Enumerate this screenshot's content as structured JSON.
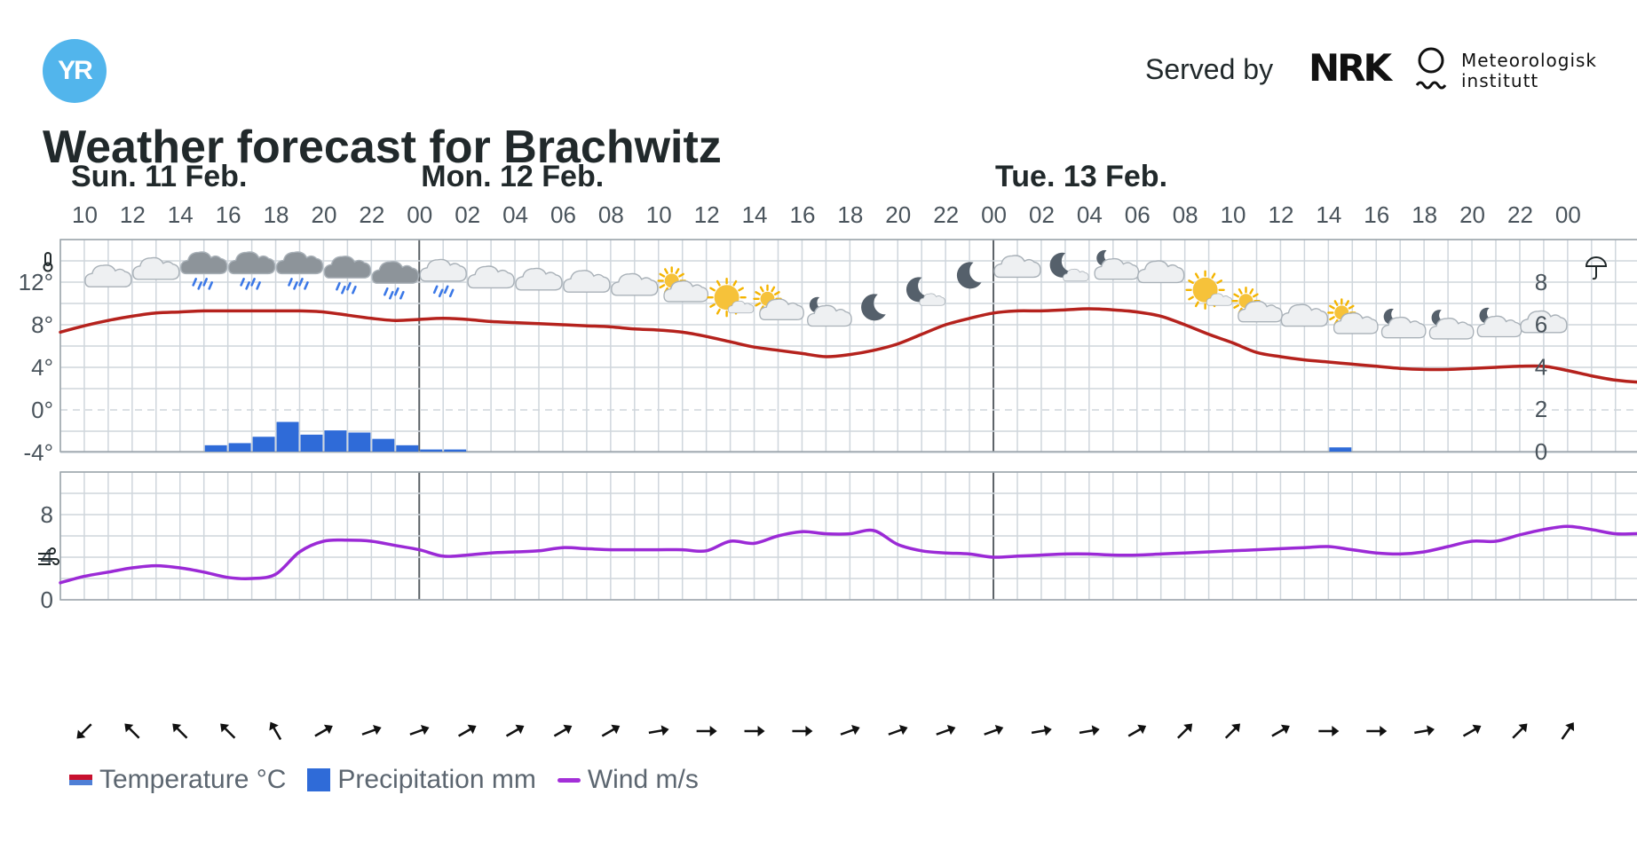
{
  "header": {
    "logo_text": "YR",
    "served_by": "Served by",
    "partner_logo_text": "NRK",
    "institute_line1": "Meteorologisk",
    "institute_line2": "institutt",
    "title": "Weather forecast for Brachwitz"
  },
  "legend": {
    "temperature": "Temperature °C",
    "precipitation": "Precipitation mm",
    "wind": "Wind m/s"
  },
  "colors": {
    "temperature": "#b5221d",
    "precipitation": "#2f6bd8",
    "wind": "#9b2ad6",
    "grid": "#cfd6dc"
  },
  "chart_data": {
    "type": "line",
    "days": [
      {
        "label": "Sun. 11 Feb.",
        "start_hour": 10
      },
      {
        "label": "Mon. 12 Feb.",
        "start_hour": 0
      },
      {
        "label": "Tue. 13 Feb.",
        "start_hour": 0
      }
    ],
    "hour_ticks": [
      "10",
      "12",
      "14",
      "16",
      "18",
      "20",
      "22",
      "00",
      "02",
      "04",
      "06",
      "08",
      "10",
      "12",
      "14",
      "16",
      "18",
      "20",
      "22",
      "00",
      "02",
      "04",
      "06",
      "08",
      "10",
      "12",
      "14",
      "16",
      "18",
      "20",
      "22",
      "00"
    ],
    "temperature": {
      "name": "Temperature °C",
      "axis_ticks": [
        "12°",
        "8°",
        "4°",
        "0°",
        "-4°"
      ],
      "ylim": [
        -4,
        16
      ],
      "hours": [
        9,
        10,
        11,
        12,
        13,
        14,
        15,
        16,
        17,
        18,
        19,
        20,
        21,
        22,
        23,
        24,
        25,
        26,
        27,
        28,
        29,
        30,
        31,
        32,
        33,
        34,
        35,
        36,
        37,
        38,
        39,
        40,
        41,
        42,
        43,
        44,
        45,
        46,
        47,
        48,
        49,
        50,
        51,
        52,
        53,
        54,
        55,
        56,
        57,
        58,
        59,
        60,
        61,
        62,
        63,
        64,
        65,
        66,
        67,
        68,
        69,
        70,
        71,
        72,
        73,
        74,
        75,
        76,
        77,
        78,
        79,
        80,
        81,
        82,
        83,
        84,
        85,
        86,
        87,
        88,
        89,
        90,
        91,
        92,
        93,
        94,
        95,
        96,
        97,
        98,
        99,
        100,
        101,
        102,
        103,
        104,
        105,
        106,
        107,
        108,
        109
      ],
      "values": [
        7.3,
        7.9,
        8.4,
        8.8,
        9.1,
        9.2,
        9.3,
        9.3,
        9.3,
        9.3,
        9.3,
        9.2,
        8.9,
        8.6,
        8.4,
        8.5,
        8.6,
        8.5,
        8.3,
        8.2,
        8.1,
        8.0,
        7.9,
        7.8,
        7.6,
        7.5,
        7.3,
        6.9,
        6.4,
        5.9,
        5.6,
        5.3,
        5.0,
        5.2,
        5.6,
        6.2,
        7.1,
        8.0,
        8.6,
        9.1,
        9.3,
        9.3,
        9.4,
        9.5,
        9.4,
        9.2,
        8.8,
        8.0,
        7.1,
        6.3,
        5.4,
        5.0,
        4.7,
        4.5,
        4.3,
        4.1,
        3.9,
        3.8,
        3.8,
        3.9,
        4.0,
        4.1,
        4.1,
        3.7,
        3.2,
        2.8,
        2.6,
        2.6,
        2.7,
        2.8,
        2.8,
        3.2,
        3.9,
        4.5,
        5.1,
        5.8,
        6.6,
        7.4,
        7.7,
        7.8,
        7.7,
        7.6,
        7.7,
        7.7,
        7.5,
        7.2,
        6.6,
        5.3,
        4.6,
        4.5,
        4.2,
        3.8,
        3.5,
        3.2,
        3.0,
        2.9,
        2.8,
        2.7,
        2.6,
        2.6,
        2.7
      ]
    },
    "precipitation": {
      "name": "Precipitation mm",
      "axis_ticks": [
        "8",
        "6",
        "4",
        "2",
        "0"
      ],
      "ylim": [
        0,
        10
      ],
      "bars": [
        {
          "hour": 15,
          "value": 0.3
        },
        {
          "hour": 16,
          "value": 0.4
        },
        {
          "hour": 17,
          "value": 0.7
        },
        {
          "hour": 18,
          "value": 1.4
        },
        {
          "hour": 19,
          "value": 0.8
        },
        {
          "hour": 20,
          "value": 1.0
        },
        {
          "hour": 21,
          "value": 0.9
        },
        {
          "hour": 22,
          "value": 0.6
        },
        {
          "hour": 23,
          "value": 0.3
        },
        {
          "hour": 24,
          "value": 0.1
        },
        {
          "hour": 25,
          "value": 0.1
        },
        {
          "hour": 62,
          "value": 0.2
        }
      ]
    },
    "wind": {
      "name": "Wind m/s",
      "axis_ticks": [
        "8",
        "4",
        "0"
      ],
      "ylim": [
        0,
        12
      ],
      "hours": [
        9,
        10,
        11,
        12,
        13,
        14,
        15,
        16,
        17,
        18,
        19,
        20,
        21,
        22,
        23,
        24,
        25,
        26,
        27,
        28,
        29,
        30,
        31,
        32,
        33,
        34,
        35,
        36,
        37,
        38,
        39,
        40,
        41,
        42,
        43,
        44,
        45,
        46,
        47,
        48,
        49,
        50,
        51,
        52,
        53,
        54,
        55,
        56,
        57,
        58,
        59,
        60,
        61,
        62,
        63,
        64,
        65,
        66,
        67,
        68,
        69,
        70,
        71,
        72,
        73,
        74,
        75,
        76,
        77,
        78,
        79,
        80,
        81,
        82,
        83,
        84,
        85,
        86,
        87,
        88,
        89,
        90,
        91,
        92,
        93,
        94,
        95,
        96,
        97,
        98,
        99,
        100,
        101,
        102,
        103,
        104,
        105,
        106,
        107,
        108,
        109
      ],
      "values": [
        1.6,
        2.2,
        2.6,
        3.0,
        3.2,
        3.0,
        2.6,
        2.1,
        2.0,
        2.4,
        4.5,
        5.5,
        5.6,
        5.5,
        5.1,
        4.7,
        4.1,
        4.2,
        4.4,
        4.5,
        4.6,
        4.9,
        4.8,
        4.7,
        4.7,
        4.7,
        4.7,
        4.6,
        5.5,
        5.3,
        6.0,
        6.4,
        6.2,
        6.2,
        6.5,
        5.2,
        4.6,
        4.4,
        4.3,
        4.0,
        4.1,
        4.2,
        4.3,
        4.3,
        4.2,
        4.2,
        4.3,
        4.4,
        4.5,
        4.6,
        4.7,
        4.8,
        4.9,
        5.0,
        4.7,
        4.4,
        4.3,
        4.5,
        5.0,
        5.5,
        5.5,
        6.1,
        6.6,
        6.9,
        6.6,
        6.2,
        6.2,
        6.0,
        5.8,
        5.4,
        3.8,
        3.0,
        2.9,
        3.0,
        3.1,
        3.1,
        2.9,
        2.8,
        2.6,
        2.6,
        2.6,
        2.5,
        2.5,
        2.5,
        2.5,
        2.5,
        2.5,
        2.5,
        2.5,
        2.5,
        2.5,
        2.5,
        2.5,
        2.5,
        2.5,
        2.5,
        2.5,
        2.5,
        2.5,
        2.5,
        2.5
      ]
    },
    "wind_arrows": [
      {
        "hour": 10,
        "dir_deg": 225
      },
      {
        "hour": 12,
        "dir_deg": 315
      },
      {
        "hour": 14,
        "dir_deg": 315
      },
      {
        "hour": 16,
        "dir_deg": 315
      },
      {
        "hour": 18,
        "dir_deg": 330
      },
      {
        "hour": 20,
        "dir_deg": 60
      },
      {
        "hour": 22,
        "dir_deg": 70
      },
      {
        "hour": 24,
        "dir_deg": 70
      },
      {
        "hour": 26,
        "dir_deg": 60
      },
      {
        "hour": 28,
        "dir_deg": 60
      },
      {
        "hour": 30,
        "dir_deg": 60
      },
      {
        "hour": 32,
        "dir_deg": 60
      },
      {
        "hour": 34,
        "dir_deg": 80
      },
      {
        "hour": 36,
        "dir_deg": 90
      },
      {
        "hour": 38,
        "dir_deg": 90
      },
      {
        "hour": 40,
        "dir_deg": 90
      },
      {
        "hour": 42,
        "dir_deg": 70
      },
      {
        "hour": 44,
        "dir_deg": 70
      },
      {
        "hour": 46,
        "dir_deg": 70
      },
      {
        "hour": 48,
        "dir_deg": 70
      },
      {
        "hour": 50,
        "dir_deg": 80
      },
      {
        "hour": 52,
        "dir_deg": 80
      },
      {
        "hour": 54,
        "dir_deg": 60
      },
      {
        "hour": 56,
        "dir_deg": 45
      },
      {
        "hour": 58,
        "dir_deg": 45
      },
      {
        "hour": 60,
        "dir_deg": 60
      },
      {
        "hour": 62,
        "dir_deg": 90
      },
      {
        "hour": 64,
        "dir_deg": 90
      },
      {
        "hour": 66,
        "dir_deg": 80
      },
      {
        "hour": 68,
        "dir_deg": 60
      },
      {
        "hour": 70,
        "dir_deg": 45
      },
      {
        "hour": 72,
        "dir_deg": 35
      }
    ],
    "weather_icons": [
      {
        "hour": 11,
        "icon": "cloudy"
      },
      {
        "hour": 13,
        "icon": "cloudy"
      },
      {
        "hour": 15,
        "icon": "rain"
      },
      {
        "hour": 17,
        "icon": "rain"
      },
      {
        "hour": 19,
        "icon": "rain"
      },
      {
        "hour": 21,
        "icon": "rain"
      },
      {
        "hour": 23,
        "icon": "rain"
      },
      {
        "hour": 25,
        "icon": "light-rain"
      },
      {
        "hour": 27,
        "icon": "cloudy"
      },
      {
        "hour": 29,
        "icon": "cloudy"
      },
      {
        "hour": 31,
        "icon": "cloudy"
      },
      {
        "hour": 33,
        "icon": "cloudy"
      },
      {
        "hour": 35,
        "icon": "partly-cloudy-day"
      },
      {
        "hour": 37,
        "icon": "fair-day"
      },
      {
        "hour": 39,
        "icon": "partly-cloudy-day"
      },
      {
        "hour": 41,
        "icon": "partly-cloudy-night"
      },
      {
        "hour": 43,
        "icon": "clear-night"
      },
      {
        "hour": 45,
        "icon": "fair-night"
      },
      {
        "hour": 47,
        "icon": "clear-night"
      },
      {
        "hour": 49,
        "icon": "cloudy"
      },
      {
        "hour": 51,
        "icon": "fair-night"
      },
      {
        "hour": 53,
        "icon": "partly-cloudy-night"
      },
      {
        "hour": 55,
        "icon": "cloudy"
      },
      {
        "hour": 57,
        "icon": "fair-day"
      },
      {
        "hour": 59,
        "icon": "partly-cloudy-day"
      },
      {
        "hour": 61,
        "icon": "cloudy"
      },
      {
        "hour": 63,
        "icon": "partly-cloudy-day"
      },
      {
        "hour": 65,
        "icon": "partly-cloudy-night"
      },
      {
        "hour": 67,
        "icon": "partly-cloudy-night"
      },
      {
        "hour": 69,
        "icon": "partly-cloudy-night"
      },
      {
        "hour": 71,
        "icon": "cloudy"
      }
    ]
  }
}
